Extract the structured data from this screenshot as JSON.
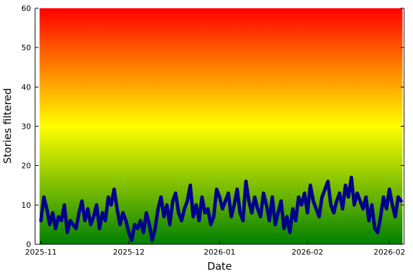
{
  "chart_data": {
    "type": "line",
    "title": "",
    "xlabel": "Date",
    "ylabel": "Stories filtered",
    "ylim": [
      0,
      60
    ],
    "yticks": [
      0,
      10,
      20,
      30,
      40,
      50,
      60
    ],
    "xlim": [
      "2025-10-30",
      "2026-03-05"
    ],
    "xticks": [
      {
        "label": "2025-11",
        "date": "2025-11-01"
      },
      {
        "label": "2025-12",
        "date": "2025-12-01"
      },
      {
        "label": "2026-01",
        "date": "2026-01-01"
      },
      {
        "label": "2026-02",
        "date": "2026-01-31"
      },
      {
        "label": "2026-02",
        "date": "2026-02-28"
      }
    ],
    "grid": false,
    "legend": "none",
    "background_gradient": {
      "colors": [
        "#008000",
        "#ffff00",
        "#ff0000"
      ],
      "range": [
        0,
        60
      ]
    },
    "series": [
      {
        "color": "#00008b",
        "x": [
          "2025-11-01",
          "2025-11-02",
          "2025-11-03",
          "2025-11-04",
          "2025-11-05",
          "2025-11-06",
          "2025-11-07",
          "2025-11-08",
          "2025-11-09",
          "2025-11-10",
          "2025-11-11",
          "2025-11-12",
          "2025-11-13",
          "2025-11-14",
          "2025-11-15",
          "2025-11-16",
          "2025-11-17",
          "2025-11-18",
          "2025-11-19",
          "2025-11-20",
          "2025-11-21",
          "2025-11-22",
          "2025-11-23",
          "2025-11-24",
          "2025-11-25",
          "2025-11-26",
          "2025-11-27",
          "2025-11-28",
          "2025-11-29",
          "2025-11-30",
          "2025-12-01",
          "2025-12-02",
          "2025-12-03",
          "2025-12-04",
          "2025-12-05",
          "2025-12-06",
          "2025-12-07",
          "2025-12-08",
          "2025-12-09",
          "2025-12-10",
          "2025-12-11",
          "2025-12-12",
          "2025-12-13",
          "2025-12-14",
          "2025-12-15",
          "2025-12-16",
          "2025-12-17",
          "2025-12-18",
          "2025-12-19",
          "2025-12-20",
          "2025-12-21",
          "2025-12-22",
          "2025-12-23",
          "2025-12-24",
          "2025-12-25",
          "2025-12-26",
          "2025-12-27",
          "2025-12-28",
          "2025-12-29",
          "2025-12-30",
          "2025-12-31",
          "2026-01-01",
          "2026-01-02",
          "2026-01-03",
          "2026-01-04",
          "2026-01-05",
          "2026-01-06",
          "2026-01-07",
          "2026-01-08",
          "2026-01-09",
          "2026-01-10",
          "2026-01-11",
          "2026-01-12",
          "2026-01-13",
          "2026-01-14",
          "2026-01-15",
          "2026-01-16",
          "2026-01-17",
          "2026-01-18",
          "2026-01-19",
          "2026-01-20",
          "2026-01-21",
          "2026-01-22",
          "2026-01-23",
          "2026-01-24",
          "2026-01-25",
          "2026-01-26",
          "2026-01-27",
          "2026-01-28",
          "2026-01-29",
          "2026-01-30",
          "2026-01-31",
          "2026-02-01",
          "2026-02-02",
          "2026-02-03",
          "2026-02-04",
          "2026-02-05",
          "2026-02-06",
          "2026-02-07",
          "2026-02-08",
          "2026-02-09",
          "2026-02-10",
          "2026-02-11",
          "2026-02-12",
          "2026-02-13",
          "2026-02-14",
          "2026-02-15",
          "2026-02-16",
          "2026-02-17",
          "2026-02-18",
          "2026-02-19",
          "2026-02-20",
          "2026-02-21",
          "2026-02-22",
          "2026-02-23",
          "2026-02-24",
          "2026-02-25",
          "2026-02-26",
          "2026-02-27",
          "2026-02-28",
          "2026-03-01",
          "2026-03-02",
          "2026-03-03",
          "2026-03-04"
        ],
        "y": [
          6,
          12,
          9,
          5,
          8,
          4,
          7,
          6,
          10,
          3,
          6,
          5,
          4,
          8,
          11,
          6,
          9,
          5,
          7,
          10,
          4,
          8,
          6,
          12,
          10,
          14,
          9,
          5,
          8,
          6,
          3,
          1,
          5,
          4,
          6,
          3,
          8,
          5,
          1,
          4,
          9,
          12,
          7,
          10,
          5,
          11,
          13,
          8,
          6,
          9,
          11,
          15,
          7,
          10,
          6,
          12,
          8,
          9,
          5,
          7,
          14,
          12,
          9,
          11,
          13,
          7,
          10,
          14,
          8,
          6,
          16,
          11,
          8,
          12,
          9,
          7,
          13,
          10,
          6,
          12,
          5,
          8,
          11,
          4,
          7,
          3,
          9,
          6,
          12,
          10,
          13,
          8,
          15,
          11,
          9,
          7,
          12,
          14,
          16,
          10,
          8,
          11,
          13,
          9,
          15,
          12,
          17,
          10,
          13,
          11,
          9,
          12,
          6,
          10,
          4,
          3,
          7,
          12,
          9,
          14,
          10,
          7,
          12,
          11
        ]
      }
    ]
  }
}
